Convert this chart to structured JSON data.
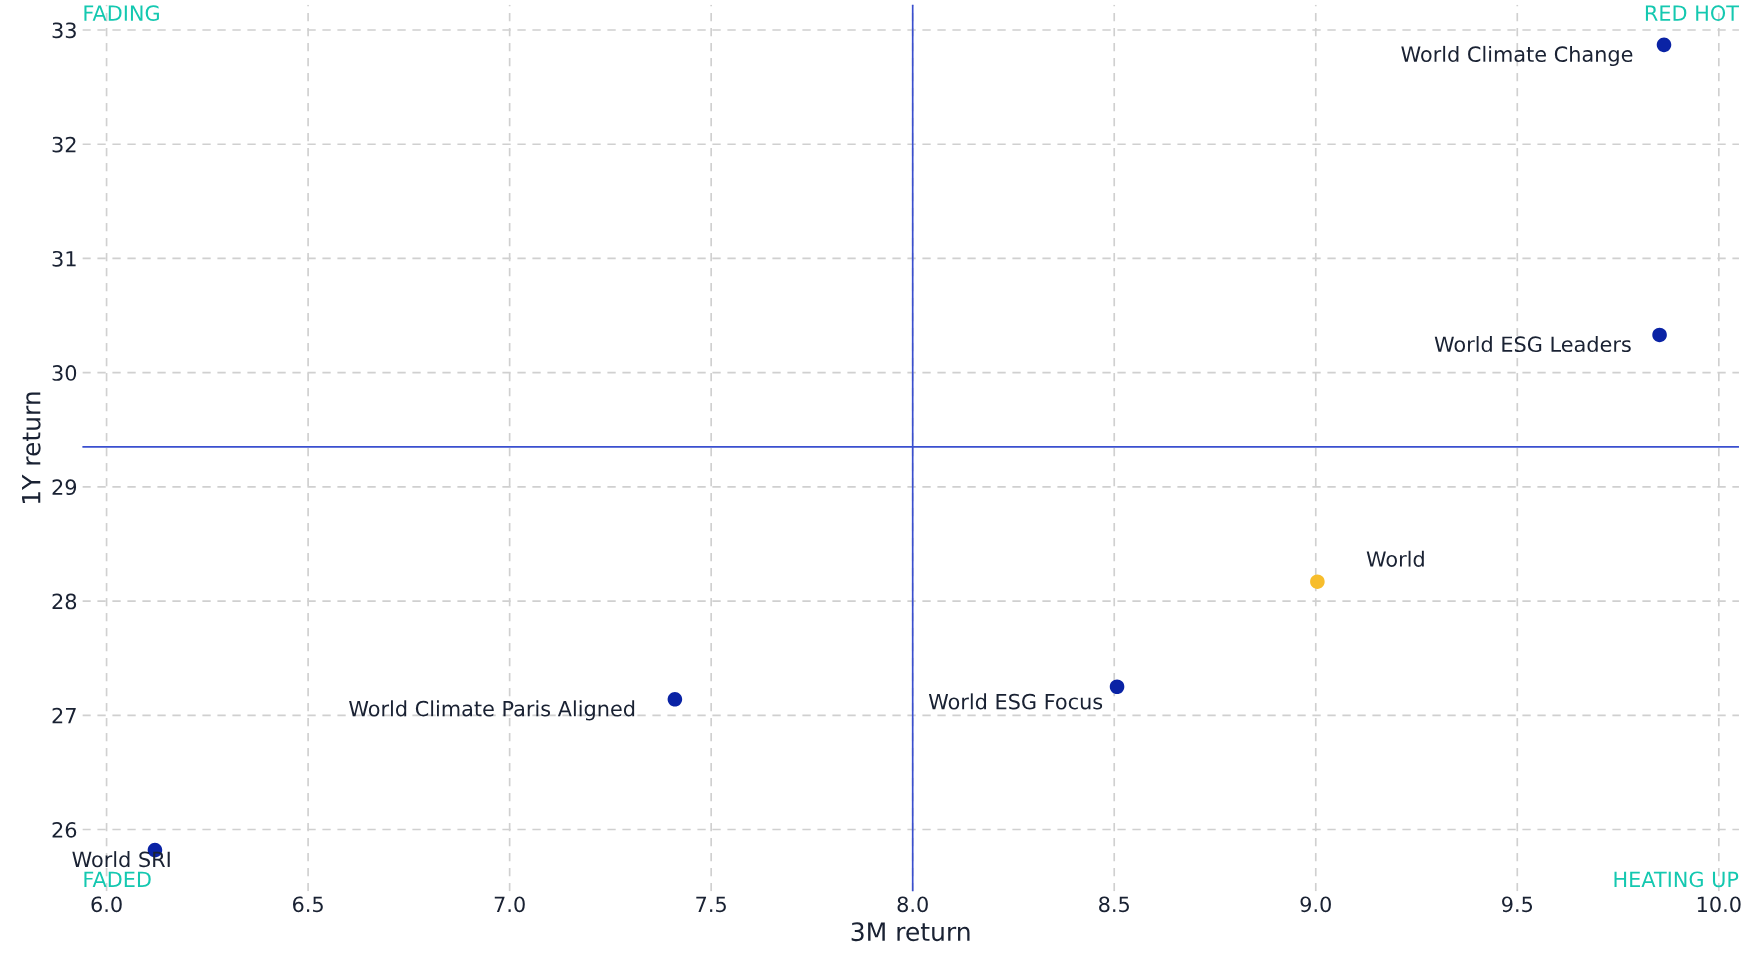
{
  "chart_data": {
    "type": "scatter",
    "xlabel": "3M return",
    "ylabel": "1Y return",
    "xlim": [
      5.94,
      10.05
    ],
    "ylim": [
      25.46,
      33.22
    ],
    "xticks": [
      {
        "value": 6,
        "label": "6.0"
      },
      {
        "value": 6.5,
        "label": "6.5"
      },
      {
        "value": 7,
        "label": "7.0"
      },
      {
        "value": 7.5,
        "label": "7.5"
      },
      {
        "value": 8,
        "label": "8.0"
      },
      {
        "value": 8.5,
        "label": "8.5"
      },
      {
        "value": 9,
        "label": "9.0"
      },
      {
        "value": 9.5,
        "label": "9.5"
      },
      {
        "value": 10,
        "label": "10.0"
      }
    ],
    "yticks": [
      26,
      27,
      28,
      29,
      30,
      31,
      32,
      33
    ],
    "grid": true,
    "legend": false,
    "marker": "circle",
    "series": [
      {
        "name": "World Climate Change",
        "color": "#0a23a5",
        "x": [
          9.864
        ],
        "values": [
          32.87
        ]
      },
      {
        "name": "World ESG Leaders",
        "color": "#0a23a5",
        "x": [
          9.853
        ],
        "values": [
          30.33
        ]
      },
      {
        "name": "World",
        "color": "#f7bd2c",
        "x": [
          9.004
        ],
        "values": [
          28.17
        ]
      },
      {
        "name": "World ESG Focus",
        "color": "#0a23a5",
        "x": [
          8.507
        ],
        "values": [
          27.25
        ]
      },
      {
        "name": "World Climate Paris Aligned",
        "color": "#0a23a5",
        "x": [
          7.41
        ],
        "values": [
          27.14
        ]
      },
      {
        "name": "World SRI",
        "color": "#0a23a5",
        "x": [
          6.12
        ],
        "values": [
          25.82
        ]
      }
    ],
    "ref_lines": [
      {
        "axis": "x",
        "value": 8.0,
        "color": "#3a4fcf"
      },
      {
        "axis": "y",
        "value": 29.35,
        "color": "#3a4fcf"
      }
    ],
    "annotations": [
      "FADING",
      "RED HOT",
      "FADED",
      "HEATING UP"
    ]
  }
}
